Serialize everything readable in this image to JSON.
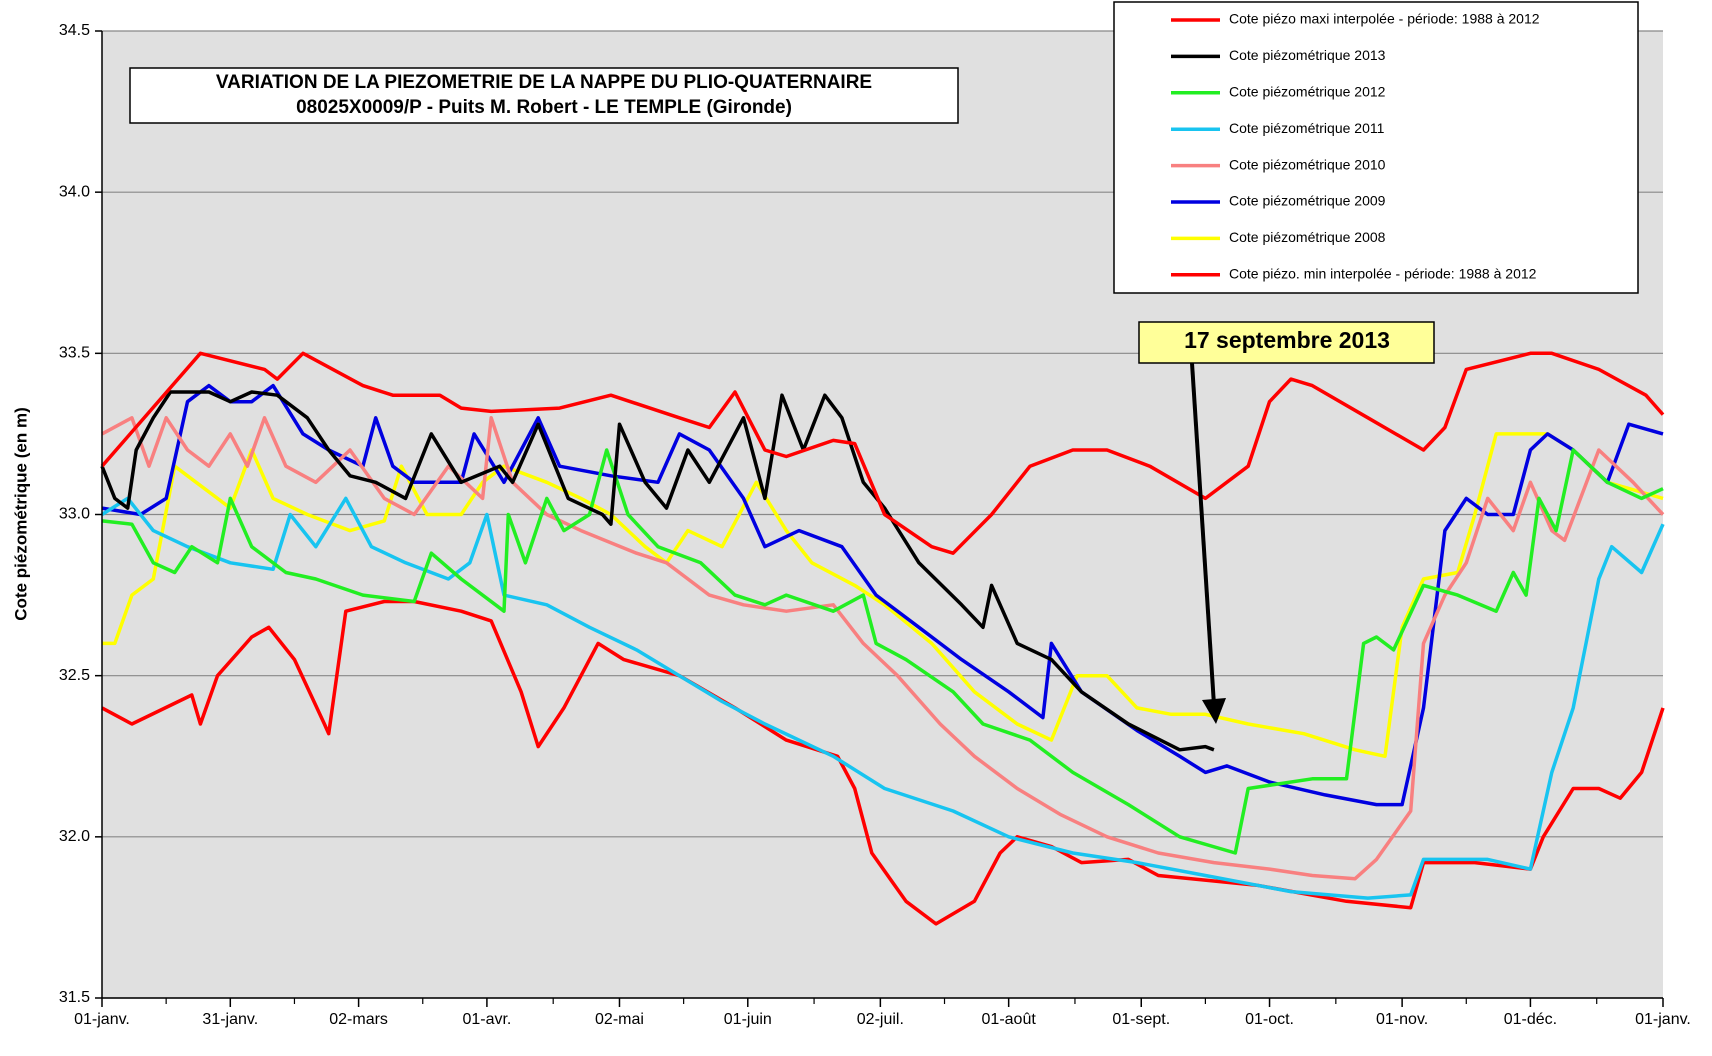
{
  "chart_data": {
    "type": "line",
    "title": "VARIATION DE LA PIEZOMETRIE DE LA NAPPE DU PLIO-QUATERNAIRE",
    "subtitle": "08025X0009/P - Puits M. Robert - LE TEMPLE (Gironde)",
    "ylabel": "Cote piézométrique (en m)",
    "annotation": "17 septembre 2013",
    "xlim": [
      0,
      365
    ],
    "xticks": [
      {
        "value": 0,
        "label": "01-janv."
      },
      {
        "value": 30,
        "label": "31-janv."
      },
      {
        "value": 60,
        "label": "02-mars"
      },
      {
        "value": 90,
        "label": "01-avr."
      },
      {
        "value": 121,
        "label": "02-mai"
      },
      {
        "value": 151,
        "label": "01-juin"
      },
      {
        "value": 182,
        "label": "02-juil."
      },
      {
        "value": 212,
        "label": "01-août"
      },
      {
        "value": 243,
        "label": "01-sept."
      },
      {
        "value": 273,
        "label": "01-oct."
      },
      {
        "value": 304,
        "label": "01-nov."
      },
      {
        "value": 334,
        "label": "01-déc."
      },
      {
        "value": 365,
        "label": "01-janv."
      }
    ],
    "ylim": [
      31.5,
      34.5
    ],
    "yticks": [
      31.5,
      {
        "value": 32,
        "label": "32.0"
      },
      32.5,
      {
        "value": 33,
        "label": "33.0"
      },
      33.5,
      {
        "value": 34,
        "label": "34.0"
      },
      34.5
    ],
    "grid": true,
    "legend": "top-right",
    "series": [
      {
        "name": "Cote piézo maxi interpolée - période: 1988 à 2012",
        "color": "#ff0000",
        "x": [
          0,
          23,
          38,
          41,
          47,
          61,
          68,
          79,
          84,
          91,
          107,
          119,
          135,
          142,
          148,
          155,
          160,
          171,
          176,
          183,
          194,
          199,
          208,
          217,
          227,
          235,
          245,
          258,
          268,
          273,
          278,
          283,
          296,
          309,
          314,
          319,
          334,
          339,
          350,
          361,
          365
        ],
        "values": [
          33.15,
          33.5,
          33.45,
          33.42,
          33.5,
          33.4,
          33.37,
          33.37,
          33.33,
          33.32,
          33.33,
          33.37,
          33.3,
          33.27,
          33.38,
          33.2,
          33.18,
          33.23,
          33.22,
          33.0,
          32.9,
          32.88,
          33.0,
          33.15,
          33.2,
          33.2,
          33.15,
          33.05,
          33.15,
          33.35,
          33.42,
          33.4,
          33.3,
          33.2,
          33.27,
          33.45,
          33.5,
          33.5,
          33.45,
          33.37,
          33.31
        ]
      },
      {
        "name": "Cote piézométrique 2013",
        "color": "#000000",
        "x": [
          0,
          3,
          6,
          8,
          12,
          16,
          25,
          30,
          35,
          41,
          48,
          53,
          58,
          64,
          71,
          77,
          84,
          93,
          96,
          102,
          109,
          117,
          119,
          121,
          127,
          132,
          137,
          142,
          150,
          155,
          159,
          164,
          169,
          173,
          178,
          183,
          191,
          201,
          206,
          208,
          214,
          222,
          229,
          240,
          252,
          258,
          260
        ],
        "values": [
          33.15,
          33.05,
          33.02,
          33.2,
          33.3,
          33.38,
          33.38,
          33.35,
          33.38,
          33.37,
          33.3,
          33.2,
          33.12,
          33.1,
          33.05,
          33.25,
          33.1,
          33.15,
          33.1,
          33.28,
          33.05,
          33.0,
          32.97,
          33.28,
          33.1,
          33.02,
          33.2,
          33.1,
          33.3,
          33.05,
          33.37,
          33.2,
          33.37,
          33.3,
          33.1,
          33.02,
          32.85,
          32.72,
          32.65,
          32.78,
          32.6,
          32.55,
          32.45,
          32.35,
          32.27,
          32.28,
          32.27
        ]
      },
      {
        "name": "Cote piézométrique 2012",
        "color": "#22ee22",
        "x": [
          0,
          7,
          12,
          17,
          21,
          27,
          30,
          35,
          43,
          50,
          61,
          73,
          77,
          84,
          94,
          95,
          99,
          104,
          108,
          114,
          118,
          123,
          130,
          140,
          148,
          155,
          160,
          171,
          178,
          181,
          188,
          199,
          206,
          217,
          227,
          240,
          252,
          265,
          268,
          283,
          291,
          295,
          298,
          302,
          309,
          317,
          326,
          330,
          333,
          336,
          340,
          344,
          352,
          360,
          365
        ],
        "values": [
          32.98,
          32.97,
          32.85,
          32.82,
          32.9,
          32.85,
          33.05,
          32.9,
          32.82,
          32.8,
          32.75,
          32.73,
          32.88,
          32.8,
          32.7,
          33.0,
          32.85,
          33.05,
          32.95,
          33.0,
          33.2,
          33.0,
          32.9,
          32.85,
          32.75,
          32.72,
          32.75,
          32.7,
          32.75,
          32.6,
          32.55,
          32.45,
          32.35,
          32.3,
          32.2,
          32.1,
          32.0,
          31.95,
          32.15,
          32.18,
          32.18,
          32.6,
          32.62,
          32.58,
          32.78,
          32.75,
          32.7,
          32.82,
          32.75,
          33.05,
          32.95,
          33.2,
          33.1,
          33.05,
          33.08
        ]
      },
      {
        "name": "Cote piézométrique 2011",
        "color": "#18c4f0",
        "x": [
          0,
          6,
          12,
          20,
          30,
          40,
          44,
          50,
          57,
          63,
          71,
          81,
          86,
          90,
          94,
          104,
          114,
          125,
          135,
          145,
          155,
          171,
          183,
          199,
          212,
          227,
          242,
          258,
          278,
          296,
          306,
          309,
          324,
          334,
          339,
          344,
          350,
          353,
          360,
          365
        ],
        "values": [
          33.0,
          33.05,
          32.95,
          32.9,
          32.85,
          32.83,
          33.0,
          32.9,
          33.05,
          32.9,
          32.85,
          32.8,
          32.85,
          33.0,
          32.75,
          32.72,
          32.65,
          32.58,
          32.5,
          32.42,
          32.35,
          32.25,
          32.15,
          32.08,
          32.0,
          31.95,
          31.92,
          31.88,
          31.83,
          31.81,
          31.82,
          31.93,
          31.93,
          31.9,
          32.2,
          32.4,
          32.8,
          32.9,
          32.82,
          32.97
        ]
      },
      {
        "name": "Cote piézométrique 2010",
        "color": "#f88080",
        "x": [
          0,
          7,
          11,
          15,
          20,
          25,
          30,
          34,
          38,
          43,
          50,
          58,
          66,
          73,
          81,
          89,
          91,
          96,
          104,
          112,
          125,
          132,
          142,
          150,
          160,
          171,
          178,
          186,
          196,
          204,
          214,
          224,
          235,
          247,
          260,
          273,
          283,
          293,
          298,
          306,
          309,
          314,
          319,
          324,
          330,
          334,
          339,
          342,
          350,
          358,
          365
        ],
        "values": [
          33.25,
          33.3,
          33.15,
          33.3,
          33.2,
          33.15,
          33.25,
          33.15,
          33.3,
          33.15,
          33.1,
          33.2,
          33.05,
          33.0,
          33.15,
          33.05,
          33.3,
          33.1,
          33.0,
          32.95,
          32.88,
          32.85,
          32.75,
          32.72,
          32.7,
          32.72,
          32.6,
          32.5,
          32.35,
          32.25,
          32.15,
          32.07,
          32.0,
          31.95,
          31.92,
          31.9,
          31.88,
          31.87,
          31.93,
          32.08,
          32.6,
          32.75,
          32.85,
          33.05,
          32.95,
          33.1,
          32.95,
          32.92,
          33.2,
          33.1,
          33.0
        ]
      },
      {
        "name": "Cote piézométrique 2009",
        "color": "#0000e0",
        "x": [
          0,
          9,
          15,
          20,
          25,
          30,
          35,
          40,
          47,
          53,
          61,
          64,
          68,
          73,
          84,
          87,
          94,
          102,
          107,
          119,
          130,
          135,
          142,
          150,
          155,
          163,
          173,
          181,
          191,
          201,
          212,
          220,
          222,
          229,
          242,
          252,
          258,
          263,
          273,
          286,
          298,
          304,
          309,
          314,
          319,
          324,
          330,
          334,
          338,
          344,
          352,
          357,
          365
        ],
        "values": [
          33.02,
          33.0,
          33.05,
          33.35,
          33.4,
          33.35,
          33.35,
          33.4,
          33.25,
          33.2,
          33.15,
          33.3,
          33.15,
          33.1,
          33.1,
          33.25,
          33.1,
          33.3,
          33.15,
          33.12,
          33.1,
          33.25,
          33.2,
          33.05,
          32.9,
          32.95,
          32.9,
          32.75,
          32.65,
          32.55,
          32.45,
          32.37,
          32.6,
          32.45,
          32.33,
          32.25,
          32.2,
          32.22,
          32.17,
          32.13,
          32.1,
          32.1,
          32.4,
          32.95,
          33.05,
          33.0,
          33.0,
          33.2,
          33.25,
          33.2,
          33.1,
          33.28,
          33.25
        ]
      },
      {
        "name": "Cote piézométrique 2008",
        "color": "#ffff00",
        "x": [
          0,
          3,
          7,
          12,
          17,
          22,
          27,
          30,
          35,
          40,
          48,
          58,
          66,
          70,
          76,
          84,
          89,
          94,
          104,
          112,
          119,
          127,
          132,
          137,
          145,
          153,
          160,
          166,
          176,
          183,
          194,
          204,
          214,
          222,
          228,
          235,
          242,
          250,
          258,
          268,
          281,
          293,
          300,
          304,
          309,
          317,
          321,
          326,
          338,
          344,
          352,
          365
        ],
        "values": [
          32.6,
          32.6,
          32.75,
          32.8,
          33.15,
          33.1,
          33.05,
          33.02,
          33.2,
          33.05,
          33.0,
          32.95,
          32.98,
          33.15,
          33.0,
          33.0,
          33.1,
          33.15,
          33.1,
          33.05,
          33.0,
          32.9,
          32.85,
          32.95,
          32.9,
          33.1,
          32.95,
          32.85,
          32.78,
          32.72,
          32.6,
          32.45,
          32.35,
          32.3,
          32.5,
          32.5,
          32.4,
          32.38,
          32.38,
          32.35,
          32.32,
          32.27,
          32.25,
          32.65,
          32.8,
          32.82,
          33.0,
          33.25,
          33.25,
          33.2,
          33.1,
          33.05
        ]
      },
      {
        "name": "Cote piézo. min interpolée - période: 1988 à 2012",
        "color": "#ff0000",
        "x": [
          0,
          7,
          21,
          23,
          27,
          35,
          39,
          45,
          52,
          53,
          57,
          66,
          73,
          84,
          91,
          98,
          102,
          108,
          116,
          122,
          135,
          148,
          160,
          172,
          176,
          180,
          188,
          195,
          204,
          210,
          214,
          222,
          229,
          240,
          247,
          270,
          291,
          306,
          309,
          321,
          334,
          337,
          344,
          350,
          355,
          360,
          365
        ],
        "values": [
          32.4,
          32.35,
          32.44,
          32.35,
          32.5,
          32.62,
          32.65,
          32.55,
          32.35,
          32.32,
          32.7,
          32.73,
          32.73,
          32.7,
          32.67,
          32.45,
          32.28,
          32.4,
          32.6,
          32.55,
          32.5,
          32.4,
          32.3,
          32.25,
          32.15,
          31.95,
          31.8,
          31.73,
          31.8,
          31.95,
          32.0,
          31.97,
          31.92,
          31.93,
          31.88,
          31.85,
          31.8,
          31.78,
          31.92,
          31.92,
          31.9,
          32.0,
          32.15,
          32.15,
          32.12,
          32.2,
          32.4
        ]
      }
    ]
  }
}
